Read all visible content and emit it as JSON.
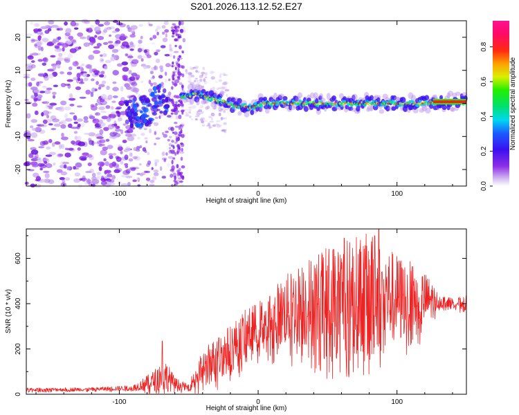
{
  "title": "S201.2026.113.12.52.E27",
  "chart_data": [
    {
      "type": "heatmap",
      "title": "S201.2026.113.12.52.E27",
      "xlabel": "Height of straight line (km)",
      "ylabel": "Frequency (Hz)",
      "xlim": [
        -167,
        150
      ],
      "ylim": [
        -25,
        25
      ],
      "xticks": [
        -100,
        0,
        100
      ],
      "yticks": [
        -20,
        -10,
        0,
        10,
        20
      ],
      "colorbar": {
        "label": "Normalized spectral amplitude",
        "range": [
          0,
          0.95
        ],
        "ticks": [
          0.0,
          0.2,
          0.4,
          0.6,
          0.8
        ],
        "tick_labels": [
          "0.0",
          "0.2",
          "0.4",
          "0.6",
          "0.8"
        ]
      },
      "ridge": {
        "x": [
          -167,
          -90,
          -80,
          -72,
          -60,
          -52,
          -45,
          -38,
          -30,
          -22,
          -15,
          -5,
          5,
          20,
          40,
          60,
          80,
          100,
          120,
          130,
          150
        ],
        "y": [
          0,
          -3,
          -2,
          1,
          2,
          2,
          3,
          2,
          1,
          0,
          -1,
          -1,
          0,
          0,
          0,
          0,
          0,
          0,
          0,
          0.5,
          0.5
        ]
      }
    },
    {
      "type": "line",
      "xlabel": "Height of straight line (km)",
      "ylabel": "SNR (10 * v/v)",
      "xlim": [
        -167,
        150
      ],
      "ylim": [
        0,
        730
      ],
      "xticks": [
        -100,
        0,
        100
      ],
      "yticks": [
        0,
        200,
        400,
        600
      ],
      "color": "#ee2222",
      "envelope": {
        "x": [
          -167,
          -120,
          -90,
          -75,
          -68,
          -60,
          -50,
          -45,
          -35,
          -20,
          -10,
          0,
          10,
          20,
          35,
          50,
          60,
          70,
          80,
          90,
          100,
          110,
          120,
          125,
          130,
          140,
          150
        ],
        "y": [
          20,
          22,
          28,
          60,
          90,
          45,
          30,
          80,
          140,
          200,
          260,
          300,
          330,
          370,
          400,
          420,
          430,
          440,
          445,
          440,
          430,
          425,
          420,
          415,
          410,
          405,
          400
        ],
        "amp": [
          8,
          8,
          12,
          45,
          80,
          30,
          12,
          60,
          90,
          110,
          110,
          110,
          140,
          160,
          200,
          240,
          250,
          260,
          270,
          230,
          190,
          160,
          120,
          90,
          30,
          20,
          35
        ],
        "peaks": [
          {
            "x": -69,
            "y": 235
          },
          {
            "x": 54,
            "y": 640
          },
          {
            "x": 62,
            "y": 690
          },
          {
            "x": 73,
            "y": 640
          },
          {
            "x": 84,
            "y": 700
          },
          {
            "x": 87,
            "y": 730
          }
        ]
      }
    }
  ]
}
